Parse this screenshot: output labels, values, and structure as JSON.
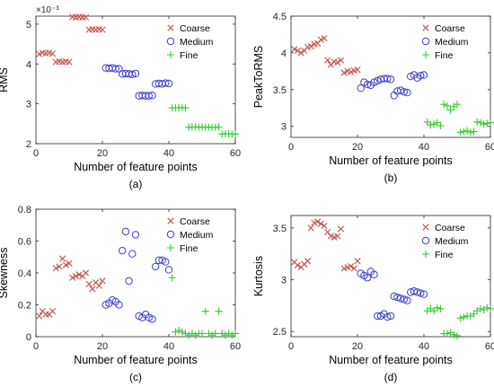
{
  "colors": {
    "coarse": "#c0504d",
    "medium": "#3c3cd0",
    "fine": "#33cc33",
    "axis": "#262626"
  },
  "chart_data": [
    {
      "type": "scatter",
      "panel_label": "(a)",
      "xlabel": "Number of feature points",
      "ylabel": "RMS",
      "exponent_label": "×10⁻³",
      "xlim": [
        0,
        60
      ],
      "ylim": [
        2,
        5.2
      ],
      "xticks": [
        0,
        20,
        40,
        60
      ],
      "yticks": [
        2,
        3,
        4,
        5
      ],
      "xticklabels": [
        "0",
        "20",
        "40",
        "60"
      ],
      "yticklabels": [
        "2",
        "3",
        "4",
        "5"
      ],
      "legend_position": "top-right",
      "series": [
        {
          "name": "Coarse",
          "marker": "x",
          "x": [
            1,
            2,
            3,
            4,
            5,
            6,
            7,
            8,
            9,
            10,
            11,
            12,
            13,
            14,
            15,
            16,
            17,
            18,
            19,
            20
          ],
          "y": [
            4.25,
            4.28,
            4.27,
            4.28,
            4.26,
            4.05,
            4.06,
            4.05,
            4.06,
            4.05,
            5.18,
            5.17,
            5.18,
            5.17,
            5.17,
            4.86,
            4.87,
            4.86,
            4.87,
            4.86
          ]
        },
        {
          "name": "Medium",
          "marker": "o",
          "x": [
            21,
            22,
            23,
            24,
            25,
            26,
            27,
            28,
            29,
            30,
            31,
            32,
            33,
            34,
            35,
            36,
            37,
            38,
            39,
            40
          ],
          "y": [
            3.9,
            3.89,
            3.9,
            3.88,
            3.88,
            3.75,
            3.76,
            3.75,
            3.74,
            3.76,
            3.2,
            3.21,
            3.2,
            3.2,
            3.21,
            3.5,
            3.51,
            3.5,
            3.52,
            3.51
          ]
        },
        {
          "name": "Fine",
          "marker": "+",
          "x": [
            41,
            42,
            43,
            44,
            45,
            46,
            47,
            48,
            49,
            50,
            51,
            52,
            53,
            54,
            55,
            56,
            57,
            58,
            59,
            60
          ],
          "y": [
            2.9,
            2.9,
            2.9,
            2.91,
            2.9,
            2.41,
            2.42,
            2.42,
            2.41,
            2.42,
            2.41,
            2.42,
            2.41,
            2.41,
            2.42,
            2.24,
            2.25,
            2.25,
            2.24,
            2.24
          ]
        }
      ]
    },
    {
      "type": "scatter",
      "panel_label": "(b)",
      "xlabel": "Number of feature points",
      "ylabel": "PeakToRMS",
      "xlim": [
        0,
        60
      ],
      "ylim": [
        2.85,
        4.5
      ],
      "xticks": [
        0,
        20,
        40,
        60
      ],
      "yticks": [
        3,
        3.5,
        4,
        4.5
      ],
      "xticklabels": [
        "0",
        "20",
        "40",
        "60"
      ],
      "yticklabels": [
        "3",
        "3.5",
        "4",
        "4.5"
      ],
      "legend_position": "top-right",
      "series": [
        {
          "name": "Coarse",
          "marker": "x",
          "x": [
            1,
            2,
            3,
            4,
            5,
            6,
            7,
            8,
            9,
            10,
            11,
            12,
            13,
            14,
            15,
            16,
            17,
            18,
            19,
            20
          ],
          "y": [
            4.05,
            4.03,
            4.0,
            4.03,
            4.08,
            4.09,
            4.12,
            4.13,
            4.18,
            4.2,
            3.9,
            3.84,
            3.88,
            3.87,
            3.9,
            3.73,
            3.75,
            3.74,
            3.76,
            3.77
          ]
        },
        {
          "name": "Medium",
          "marker": "o",
          "x": [
            21,
            22,
            23,
            24,
            25,
            26,
            27,
            28,
            29,
            30,
            31,
            32,
            33,
            34,
            35,
            36,
            37,
            38,
            39,
            40
          ],
          "y": [
            3.52,
            3.6,
            3.57,
            3.56,
            3.6,
            3.62,
            3.64,
            3.65,
            3.65,
            3.64,
            3.42,
            3.48,
            3.49,
            3.47,
            3.46,
            3.68,
            3.7,
            3.66,
            3.69,
            3.7
          ]
        },
        {
          "name": "Fine",
          "marker": "+",
          "x": [
            41,
            42,
            43,
            44,
            45,
            46,
            47,
            48,
            49,
            50,
            51,
            52,
            53,
            54,
            55,
            56,
            57,
            58,
            59,
            60
          ],
          "y": [
            3.06,
            3.02,
            3.03,
            3.05,
            3.01,
            3.3,
            3.28,
            3.22,
            3.27,
            3.3,
            2.92,
            2.93,
            2.94,
            2.92,
            2.93,
            3.06,
            3.05,
            3.03,
            3.04,
            3.05
          ]
        }
      ]
    },
    {
      "type": "scatter",
      "panel_label": "(c)",
      "xlabel": "Number of feature points",
      "ylabel": "Skewness",
      "xlim": [
        0,
        60
      ],
      "ylim": [
        0,
        0.8
      ],
      "xticks": [
        0,
        20,
        40,
        60
      ],
      "yticks": [
        0,
        0.2,
        0.4,
        0.6,
        0.8
      ],
      "xticklabels": [
        "0",
        "20",
        "40",
        "60"
      ],
      "yticklabels": [
        "0",
        "0.2",
        "0.4",
        "0.6",
        "0.8"
      ],
      "legend_position": "top-right",
      "series": [
        {
          "name": "Coarse",
          "marker": "x",
          "x": [
            1,
            2,
            3,
            4,
            5,
            6,
            7,
            8,
            9,
            10,
            11,
            12,
            13,
            14,
            15,
            16,
            17,
            18,
            19,
            20
          ],
          "y": [
            0.13,
            0.16,
            0.14,
            0.14,
            0.16,
            0.43,
            0.44,
            0.49,
            0.45,
            0.46,
            0.37,
            0.38,
            0.39,
            0.38,
            0.4,
            0.33,
            0.3,
            0.34,
            0.32,
            0.35
          ]
        },
        {
          "name": "Medium",
          "marker": "o",
          "x": [
            21,
            22,
            23,
            24,
            25,
            26,
            27,
            28,
            29,
            30,
            31,
            32,
            33,
            34,
            35,
            36,
            37,
            38,
            39,
            40
          ],
          "y": [
            0.2,
            0.21,
            0.23,
            0.22,
            0.2,
            0.54,
            0.66,
            0.35,
            0.52,
            0.64,
            0.13,
            0.12,
            0.14,
            0.12,
            0.11,
            0.44,
            0.48,
            0.48,
            0.47,
            0.42
          ]
        },
        {
          "name": "Fine",
          "marker": "+",
          "x": [
            41,
            42,
            43,
            44,
            45,
            46,
            47,
            48,
            49,
            50,
            51,
            52,
            53,
            54,
            55,
            56,
            57,
            58,
            59,
            60
          ],
          "y": [
            0.37,
            0.03,
            0.04,
            0.03,
            0.02,
            0.01,
            0.02,
            0.01,
            0.02,
            0.02,
            0.16,
            0.02,
            0.01,
            0.02,
            0.16,
            0.02,
            0.01,
            0.02,
            0.01,
            0.02
          ]
        }
      ]
    },
    {
      "type": "scatter",
      "panel_label": "(d)",
      "xlabel": "Number of feature points",
      "ylabel": "Kurtosis",
      "xlim": [
        0,
        60
      ],
      "ylim": [
        2.45,
        3.62
      ],
      "xticks": [
        0,
        20,
        40,
        60
      ],
      "yticks": [
        2.5,
        3,
        3.5
      ],
      "xticklabels": [
        "0",
        "20",
        "40",
        "60"
      ],
      "yticklabels": [
        "2.5",
        "3",
        "3.5"
      ],
      "legend_position": "top-right",
      "series": [
        {
          "name": "Coarse",
          "marker": "x",
          "x": [
            1,
            2,
            3,
            4,
            5,
            6,
            7,
            8,
            9,
            10,
            11,
            12,
            13,
            14,
            15,
            16,
            17,
            18,
            19,
            20
          ],
          "y": [
            3.17,
            3.14,
            3.12,
            3.15,
            3.18,
            3.5,
            3.55,
            3.56,
            3.54,
            3.52,
            3.46,
            3.42,
            3.41,
            3.42,
            3.49,
            3.11,
            3.12,
            3.13,
            3.11,
            3.18
          ]
        },
        {
          "name": "Medium",
          "marker": "o",
          "x": [
            21,
            22,
            23,
            24,
            25,
            26,
            27,
            28,
            29,
            30,
            31,
            32,
            33,
            34,
            35,
            36,
            37,
            38,
            39,
            40
          ],
          "y": [
            3.06,
            3.04,
            3.02,
            3.08,
            3.05,
            2.65,
            2.65,
            2.67,
            2.64,
            2.65,
            2.84,
            2.83,
            2.82,
            2.81,
            2.8,
            2.88,
            2.89,
            2.88,
            2.87,
            2.86
          ]
        },
        {
          "name": "Fine",
          "marker": "+",
          "x": [
            41,
            42,
            43,
            44,
            45,
            46,
            47,
            48,
            49,
            50,
            51,
            52,
            53,
            54,
            55,
            56,
            57,
            58,
            59,
            60
          ],
          "y": [
            2.7,
            2.72,
            2.7,
            2.73,
            2.72,
            2.48,
            2.48,
            2.49,
            2.47,
            2.46,
            2.63,
            2.64,
            2.65,
            2.65,
            2.67,
            2.7,
            2.72,
            2.71,
            2.73,
            2.72
          ]
        }
      ]
    }
  ]
}
